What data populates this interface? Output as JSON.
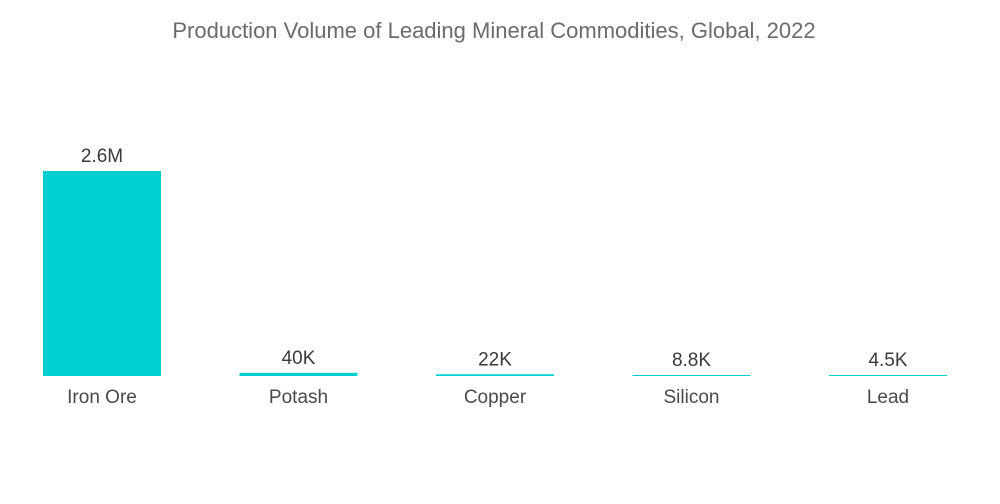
{
  "chart_data": {
    "type": "bar",
    "title": "Production Volume of Leading Mineral Commodities, Global, 2022",
    "xlabel": "",
    "ylabel": "",
    "categories": [
      "Iron Ore",
      "Potash",
      "Copper",
      "Silicon",
      "Lead"
    ],
    "values": [
      2600000,
      40000,
      22000,
      8800,
      4500
    ],
    "value_labels": [
      "2.6M",
      "40K",
      "22K",
      "8.8K",
      "4.5K"
    ],
    "ylim": [
      0,
      2600000
    ],
    "grid": false,
    "legend": "none",
    "bar_color": "#00cfd1"
  }
}
